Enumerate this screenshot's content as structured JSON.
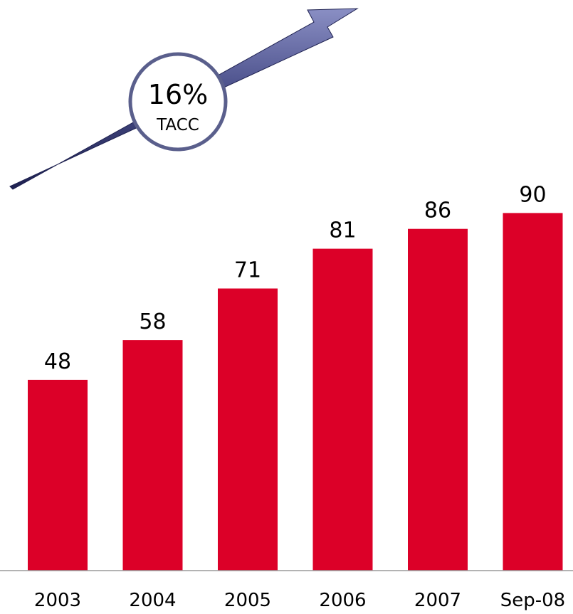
{
  "chart_data": {
    "type": "bar",
    "categories": [
      "2003",
      "2004",
      "2005",
      "2006",
      "2007",
      "Sep-08"
    ],
    "values": [
      48,
      58,
      71,
      81,
      86,
      90
    ],
    "data_labels": [
      "48",
      "58",
      "71",
      "81",
      "86",
      "90"
    ],
    "title": "",
    "xlabel": "",
    "ylabel": "",
    "ylim": [
      0,
      100
    ],
    "grid": false,
    "legend": "none",
    "bar_color": "#dc0028",
    "annotation": {
      "value": "16%",
      "caption": "TACC",
      "arrow_color": "#3a3f78",
      "ring_color": "#5a5f8c"
    }
  }
}
